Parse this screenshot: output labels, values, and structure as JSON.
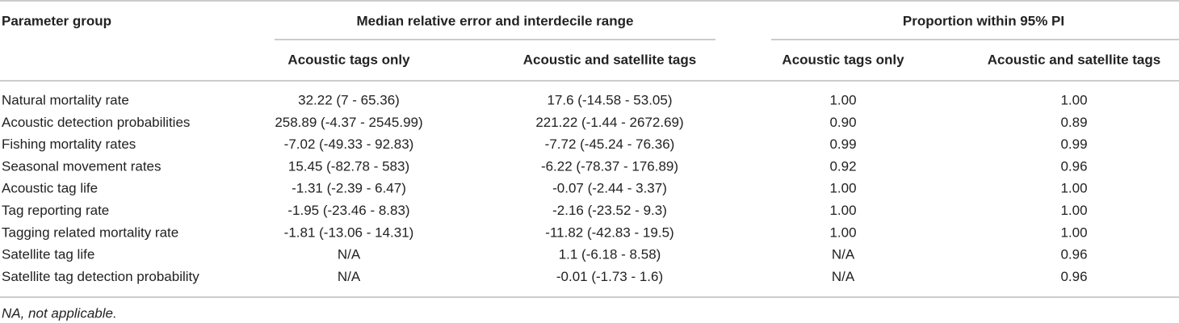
{
  "table": {
    "header": {
      "first": "Parameter group",
      "groups": [
        "Median relative error and interdecile range",
        "Proportion within 95% PI"
      ],
      "sub": [
        "Acoustic tags only",
        "Acoustic and satellite tags",
        "Acoustic tags only",
        "Acoustic and satellite tags"
      ]
    },
    "rows": [
      [
        "Natural mortality rate",
        "32.22 (7 - 65.36)",
        "17.6 (-14.58 - 53.05)",
        "1.00",
        "1.00"
      ],
      [
        "Acoustic detection probabilities",
        "258.89 (-4.37 - 2545.99)",
        "221.22 (-1.44 - 2672.69)",
        "0.90",
        "0.89"
      ],
      [
        "Fishing mortality rates",
        "-7.02 (-49.33 - 92.83)",
        "-7.72 (-45.24 - 76.36)",
        "0.99",
        "0.99"
      ],
      [
        "Seasonal movement rates",
        "15.45 (-82.78 - 583)",
        "-6.22 (-78.37 - 176.89)",
        "0.92",
        "0.96"
      ],
      [
        "Acoustic tag life",
        "-1.31 (-2.39 - 6.47)",
        "-0.07 (-2.44 - 3.37)",
        "1.00",
        "1.00"
      ],
      [
        "Tag reporting rate",
        "-1.95 (-23.46 - 8.83)",
        "-2.16 (-23.52 - 9.3)",
        "1.00",
        "1.00"
      ],
      [
        "Tagging related mortality rate",
        "-1.81 (-13.06 - 14.31)",
        "-11.82 (-42.83 - 19.5)",
        "1.00",
        "1.00"
      ],
      [
        "Satellite tag life",
        "N/A",
        "1.1 (-6.18 - 8.58)",
        "N/A",
        "0.96"
      ],
      [
        "Satellite tag detection probability",
        "N/A",
        "-0.01 (-1.73 - 1.6)",
        "N/A",
        "0.96"
      ]
    ],
    "footnote": "NA, not applicable."
  }
}
